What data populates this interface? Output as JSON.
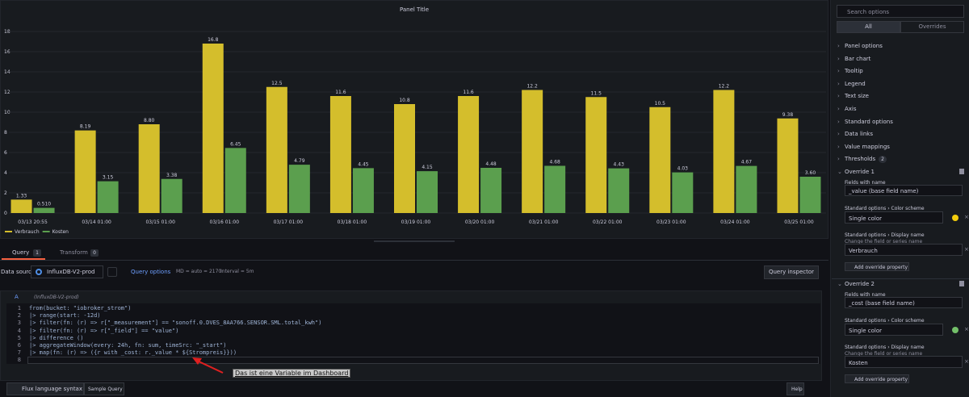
{
  "chart_data": {
    "type": "bar",
    "title": "Panel Title",
    "categories": [
      "03/13 20:55",
      "03/14 01:00",
      "03/15 01:00",
      "03/16 01:00",
      "03/17 01:00",
      "03/18 01:00",
      "03/19 01:00",
      "03/20 01:00",
      "03/21 01:00",
      "03/22 01:00",
      "03/23 01:00",
      "03/24 01:00",
      "03/25 01:00"
    ],
    "series": [
      {
        "name": "Verbrauch",
        "color": "#d4be2c",
        "values": [
          1.33,
          8.19,
          8.8,
          16.8,
          12.5,
          11.6,
          10.8,
          11.6,
          12.2,
          11.5,
          10.5,
          12.2,
          9.38
        ],
        "value_labels": [
          "1.33",
          "8.19",
          "8.80",
          "16.8",
          "12.5",
          "11.6",
          "10.8",
          "11.6",
          "12.2",
          "11.5",
          "10.5",
          "12.2",
          "9.38"
        ]
      },
      {
        "name": "Kosten",
        "color": "#5b9f4e",
        "values": [
          0.51,
          3.15,
          3.38,
          6.45,
          4.79,
          4.45,
          4.15,
          4.48,
          4.68,
          4.43,
          4.03,
          4.67,
          3.6
        ],
        "value_labels": [
          "0.510",
          "3.15",
          "3.38",
          "6.45",
          "4.79",
          "4.45",
          "4.15",
          "4.48",
          "4.68",
          "4.43",
          "4.03",
          "4.67",
          "3.60"
        ]
      }
    ],
    "ylim": [
      0,
      18
    ],
    "yticks": [
      0,
      2,
      4,
      6,
      8,
      10,
      12,
      14,
      16,
      18
    ],
    "grid": true,
    "legend": "bottom-left"
  },
  "query_tabs": [
    {
      "label": "Query",
      "count": 1
    },
    {
      "label": "Transform",
      "count": 0
    }
  ],
  "datasource": {
    "label": "Data source",
    "name": "InfluxDB-V2-prod",
    "query_options": "Query options",
    "md": "MD = auto = 2170",
    "interval": "Interval = 5m",
    "inspector": "Query inspector"
  },
  "query": {
    "ref": "A",
    "source": "(InfluxDB-V2-prod)",
    "lines": [
      {
        "n": 1,
        "text": "from(bucket: \"iobroker_strom\")"
      },
      {
        "n": 2,
        "text": "|> range(start: -12d)"
      },
      {
        "n": 3,
        "text": "|> filter(fn: (r) => r[\"_measurement\"] == \"sonoff.0.DVES_8AA766.SENSOR.SML.total_kwh\")"
      },
      {
        "n": 4,
        "text": "|> filter(fn: (r) => r[\"_field\"] == \"value\")"
      },
      {
        "n": 5,
        "text": "|> difference ()"
      },
      {
        "n": 6,
        "text": "|> aggregateWindow(every: 24h, fn: sum, timeSrc: \"_start\")"
      },
      {
        "n": 7,
        "text": "|> map(fn: (r) => ({r with _cost: r._value * ${Strompreis}}))"
      },
      {
        "n": 8
      }
    ]
  },
  "annotation": "Das ist eine Variable im Dashboard",
  "footer": {
    "syntax": "Flux language syntax",
    "sample": "Sample Query",
    "help": "Help"
  },
  "options": {
    "search": "Search options",
    "tabs": [
      "All",
      "Overrides"
    ],
    "sections": [
      {
        "label": "Panel options"
      },
      {
        "label": "Bar chart"
      },
      {
        "label": "Tooltip"
      },
      {
        "label": "Legend"
      },
      {
        "label": "Text size"
      },
      {
        "label": "Axis"
      },
      {
        "label": "Standard options"
      },
      {
        "label": "Data links"
      },
      {
        "label": "Value mappings"
      },
      {
        "label": "Thresholds",
        "count": 2
      }
    ],
    "overrides": [
      {
        "title": "Override 1",
        "matcher_label": "Fields with name",
        "matcher": "_value (base field name)",
        "properties": [
          {
            "label": "Standard options › Color scheme",
            "value": "Single color",
            "swatch": "#f2cc0c"
          },
          {
            "label": "Standard options › Display name",
            "hint": "Change the field or series name",
            "value": "Verbrauch"
          }
        ],
        "add": "Add override property"
      },
      {
        "title": "Override 2",
        "matcher_label": "Fields with name",
        "matcher": "_cost (base field name)",
        "properties": [
          {
            "label": "Standard options › Color scheme",
            "value": "Single color",
            "swatch": "#73bf69"
          },
          {
            "label": "Standard options › Display name",
            "hint": "Change the field or series name",
            "value": "Kosten"
          }
        ],
        "add": "Add override property"
      }
    ]
  }
}
